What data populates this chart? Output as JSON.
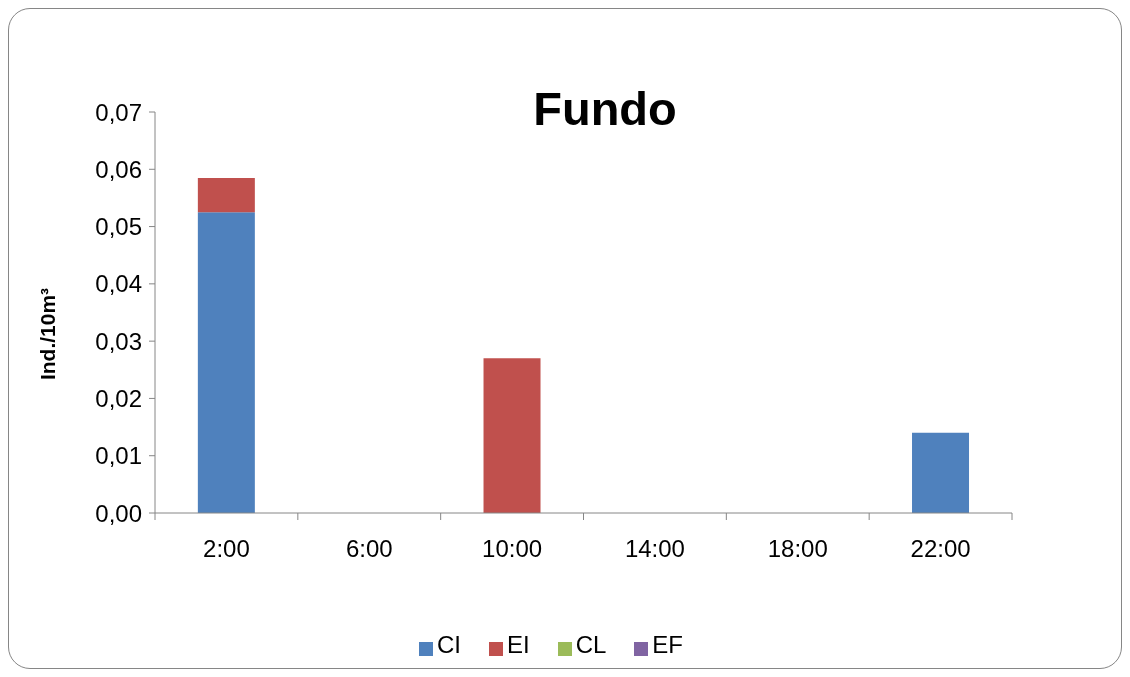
{
  "chart_data": {
    "type": "bar",
    "title": "Fundo",
    "ylabel": "Ind./10m³",
    "categories": [
      "2:00",
      "6:00",
      "10:00",
      "14:00",
      "18:00",
      "22:00"
    ],
    "series": [
      {
        "name": "CI",
        "color": "#4f81bd",
        "values": [
          0.0525,
          0,
          0,
          0,
          0,
          0.014
        ]
      },
      {
        "name": "EI",
        "color": "#c0504d",
        "values": [
          0.006,
          0,
          0.027,
          0,
          0,
          0
        ]
      },
      {
        "name": "CL",
        "color": "#9bbb59",
        "values": [
          0,
          0,
          0,
          0,
          0,
          0
        ]
      },
      {
        "name": "EF",
        "color": "#8064a2",
        "values": [
          0,
          0,
          0,
          0,
          0,
          0
        ]
      }
    ],
    "stacked": true,
    "ylim": [
      0,
      0.07
    ],
    "yticks": [
      {
        "value": 0,
        "label": "0,00"
      },
      {
        "value": 0.01,
        "label": "0,01"
      },
      {
        "value": 0.02,
        "label": "0,02"
      },
      {
        "value": 0.03,
        "label": "0,03"
      },
      {
        "value": 0.04,
        "label": "0,04"
      },
      {
        "value": 0.05,
        "label": "0,05"
      },
      {
        "value": 0.06,
        "label": "0,06"
      },
      {
        "value": 0.07,
        "label": "0,07"
      }
    ],
    "legend": "bottom"
  }
}
